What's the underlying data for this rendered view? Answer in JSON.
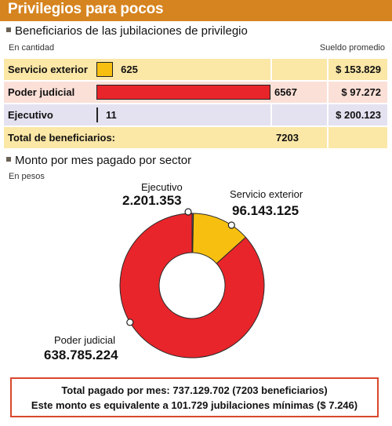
{
  "title": "Privilegios para pocos",
  "section1": {
    "heading": "Beneficiarios de las jubilaciones de privilegio",
    "unit": "En cantidad",
    "salary_header": "Sueldo promedio"
  },
  "section2": {
    "heading": "Monto por mes pagado por sector",
    "unit": "En pesos"
  },
  "rows": [
    {
      "label": "Servicio exterior",
      "value": "625",
      "salary": "$ 153.829",
      "bar_color": "#f7c010",
      "row_bg": "#fbe7a6"
    },
    {
      "label": "Poder judicial",
      "value": "6567",
      "salary": "$ 97.272",
      "bar_color": "#e8252a",
      "row_bg": "#fbe0d8"
    },
    {
      "label": "Ejecutivo",
      "value": "11",
      "salary": "$ 200.123",
      "bar_color": "#8d86b8",
      "row_bg": "#e4e1f0"
    }
  ],
  "total_row": {
    "label": "Total de beneficiarios:",
    "value": "7203",
    "row_bg": "#fbe7a6"
  },
  "donut_labels": {
    "ejecutivo": {
      "name": "Ejecutivo",
      "value": "2.201.353"
    },
    "servicio": {
      "name": "Servicio exterior",
      "value": "96.143.125"
    },
    "judicial": {
      "name": "Poder judicial",
      "value": "638.785.224"
    }
  },
  "footer": {
    "line1": "Total pagado por mes: 737.129.702 (7203 beneficiarios)",
    "line2": "Este monto es equivalente a 101.729 jubilaciones mínimas ($ 7.246)"
  },
  "chart_data": [
    {
      "type": "bar",
      "title": "Beneficiarios de las jubilaciones de privilegio",
      "categories": [
        "Servicio exterior",
        "Poder judicial",
        "Ejecutivo"
      ],
      "values": [
        625,
        6567,
        11
      ],
      "total": 7203,
      "extra": {
        "Sueldo promedio": [
          153829,
          97272,
          200123
        ]
      },
      "colors": [
        "#f7c010",
        "#e8252a",
        "#8d86b8"
      ]
    },
    {
      "type": "pie",
      "title": "Monto por mes pagado por sector",
      "categories": [
        "Ejecutivo",
        "Servicio exterior",
        "Poder judicial"
      ],
      "values": [
        2201353,
        96143125,
        638785224
      ],
      "colors": [
        "#6b5a7a",
        "#f7c010",
        "#e8252a"
      ]
    }
  ]
}
